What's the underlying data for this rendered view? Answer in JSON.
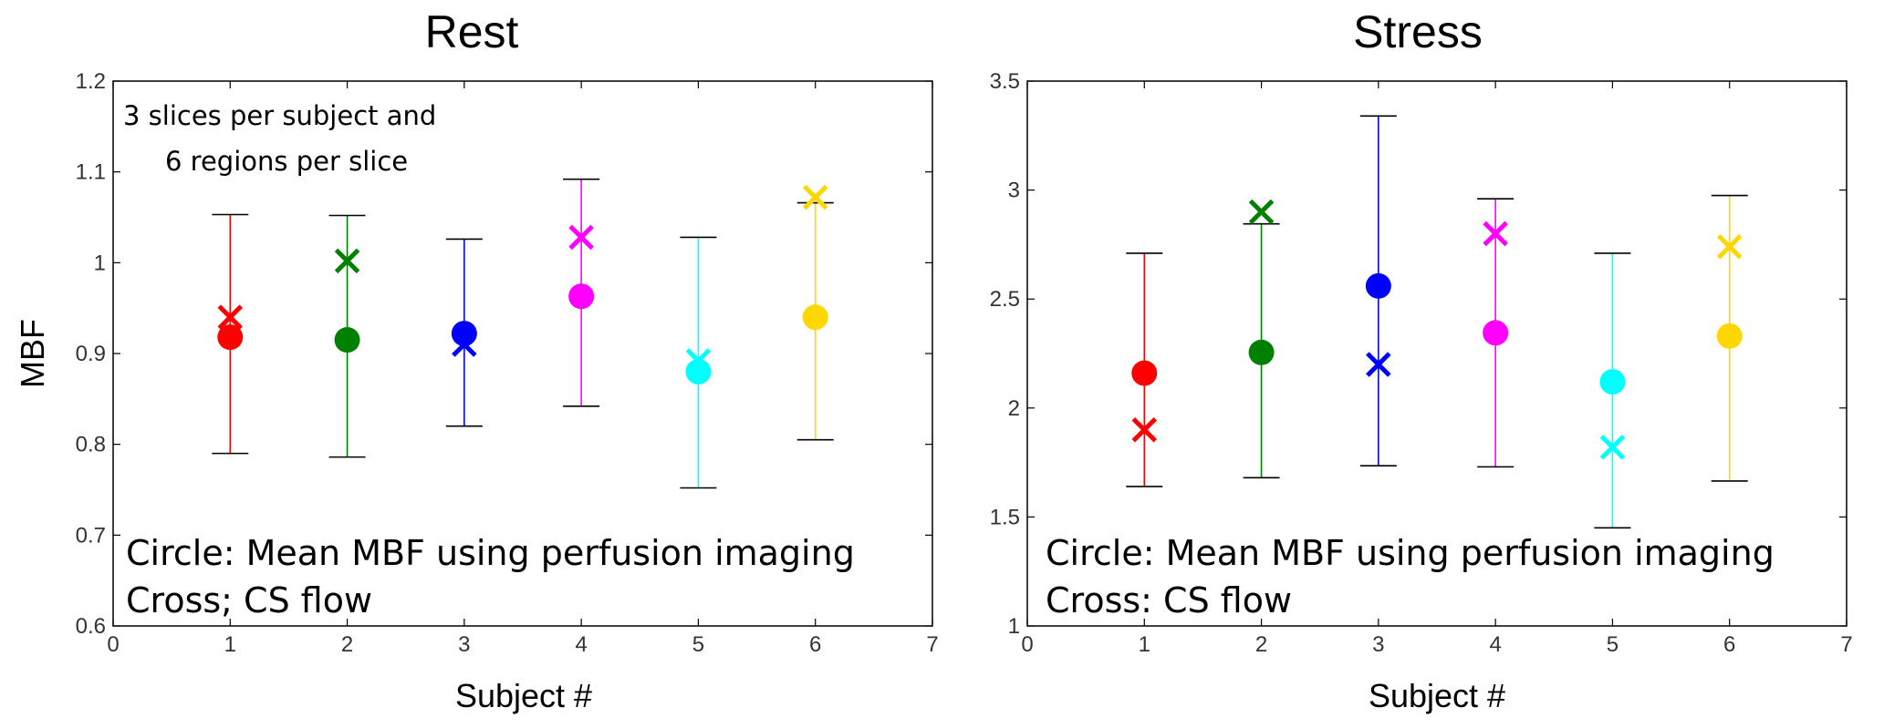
{
  "chart_data": [
    {
      "type": "scatter",
      "title": "Rest",
      "xlabel": "Subject #",
      "ylabel": "MBF",
      "xlim": [
        0,
        7
      ],
      "ylim": [
        0.6,
        1.2
      ],
      "xticks": [
        "0",
        "1",
        "2",
        "3",
        "4",
        "5",
        "6",
        "7"
      ],
      "yticks": [
        "0.6",
        "0.7",
        "0.8",
        "0.9",
        "1",
        "1.1",
        "1.2"
      ],
      "annotation": [
        "3 slices per subject and",
        "6 regions per slice"
      ],
      "legend_text": [
        "Circle: Mean MBF using perfusion imaging",
        "Cross; CS flow"
      ],
      "subjects": [
        {
          "x": 1,
          "color": "#ff0000",
          "mean": 0.918,
          "lower": 0.79,
          "upper": 1.053,
          "cs": 0.94
        },
        {
          "x": 2,
          "color": "#008000",
          "mean": 0.915,
          "lower": 0.786,
          "upper": 1.052,
          "cs": 1.002
        },
        {
          "x": 3,
          "color": "#0000ff",
          "mean": 0.922,
          "lower": 0.82,
          "upper": 1.026,
          "cs": 0.91
        },
        {
          "x": 4,
          "color": "#ff00ff",
          "mean": 0.963,
          "lower": 0.842,
          "upper": 1.092,
          "cs": 1.028
        },
        {
          "x": 5,
          "color": "#00ffff",
          "mean": 0.88,
          "lower": 0.752,
          "upper": 1.028,
          "cs": 0.892
        },
        {
          "x": 6,
          "color": "#ffd700",
          "mean": 0.94,
          "lower": 0.805,
          "upper": 1.066,
          "cs": 1.072
        }
      ]
    },
    {
      "type": "scatter",
      "title": "Stress",
      "xlabel": "Subject #",
      "ylabel": "",
      "xlim": [
        0,
        7
      ],
      "ylim": [
        1,
        3.5
      ],
      "xticks": [
        "0",
        "1",
        "2",
        "3",
        "4",
        "5",
        "6",
        "7"
      ],
      "yticks": [
        "1",
        "1.5",
        "2",
        "2.5",
        "3",
        "3.5"
      ],
      "annotation": [],
      "legend_text": [
        "Circle: Mean MBF using perfusion imaging",
        "Cross: CS flow"
      ],
      "subjects": [
        {
          "x": 1,
          "color": "#ff0000",
          "mean": 2.16,
          "lower": 1.64,
          "upper": 2.71,
          "cs": 1.9
        },
        {
          "x": 2,
          "color": "#008000",
          "mean": 2.255,
          "lower": 1.68,
          "upper": 2.845,
          "cs": 2.9
        },
        {
          "x": 3,
          "color": "#0000ff",
          "mean": 2.56,
          "lower": 1.735,
          "upper": 3.34,
          "cs": 2.2
        },
        {
          "x": 4,
          "color": "#ff00ff",
          "mean": 2.345,
          "lower": 1.73,
          "upper": 2.96,
          "cs": 2.8
        },
        {
          "x": 5,
          "color": "#00ffff",
          "mean": 2.12,
          "lower": 1.45,
          "upper": 2.71,
          "cs": 1.82
        },
        {
          "x": 6,
          "color": "#ffd700",
          "mean": 2.33,
          "lower": 1.665,
          "upper": 2.975,
          "cs": 2.74
        }
      ]
    }
  ]
}
